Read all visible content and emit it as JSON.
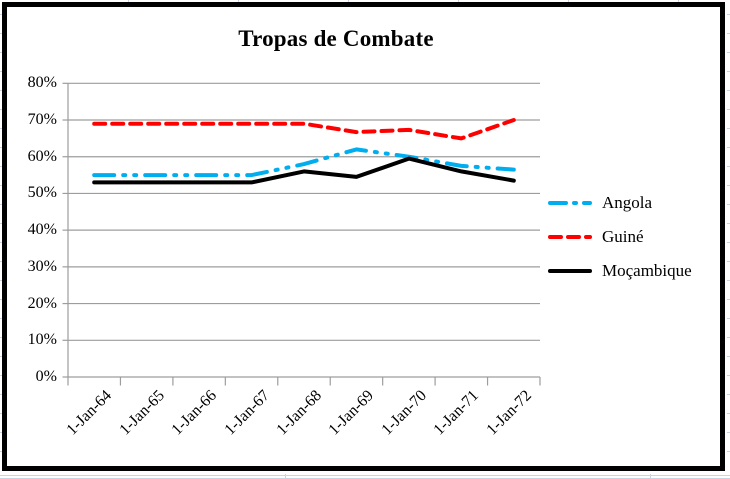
{
  "chart_data": {
    "type": "line",
    "title": "Tropas de Combate",
    "categories": [
      "1-Jan-64",
      "1-Jan-65",
      "1-Jan-66",
      "1-Jan-67",
      "1-Jan-68",
      "1-Jan-69",
      "1-Jan-70",
      "1-Jan-71",
      "1-Jan-72"
    ],
    "series": [
      {
        "name": "Angola",
        "color": "#00AEEF",
        "style": "long-dash-dot-dot",
        "values": [
          55,
          55,
          55,
          55,
          58,
          62,
          60,
          57.5,
          56.5
        ]
      },
      {
        "name": "Guiné",
        "color": "#FF0000",
        "style": "dash",
        "values": [
          69,
          69,
          69,
          69,
          69,
          66.7,
          67.3,
          65,
          70
        ]
      },
      {
        "name": "Moçambique",
        "color": "#000000",
        "style": "solid",
        "values": [
          53,
          53,
          53,
          53,
          56,
          54.5,
          59.5,
          56,
          53.5
        ]
      }
    ],
    "xlabel": "",
    "ylabel": "",
    "ylim": [
      0,
      80
    ],
    "ytick_step": 10,
    "ytick_labels": [
      "0%",
      "10%",
      "20%",
      "30%",
      "40%",
      "50%",
      "60%",
      "70%",
      "80%"
    ],
    "grid": true,
    "gridline_color": "#9d9d9d",
    "axis_color": "#9d9d9d",
    "legend_position": "right"
  }
}
